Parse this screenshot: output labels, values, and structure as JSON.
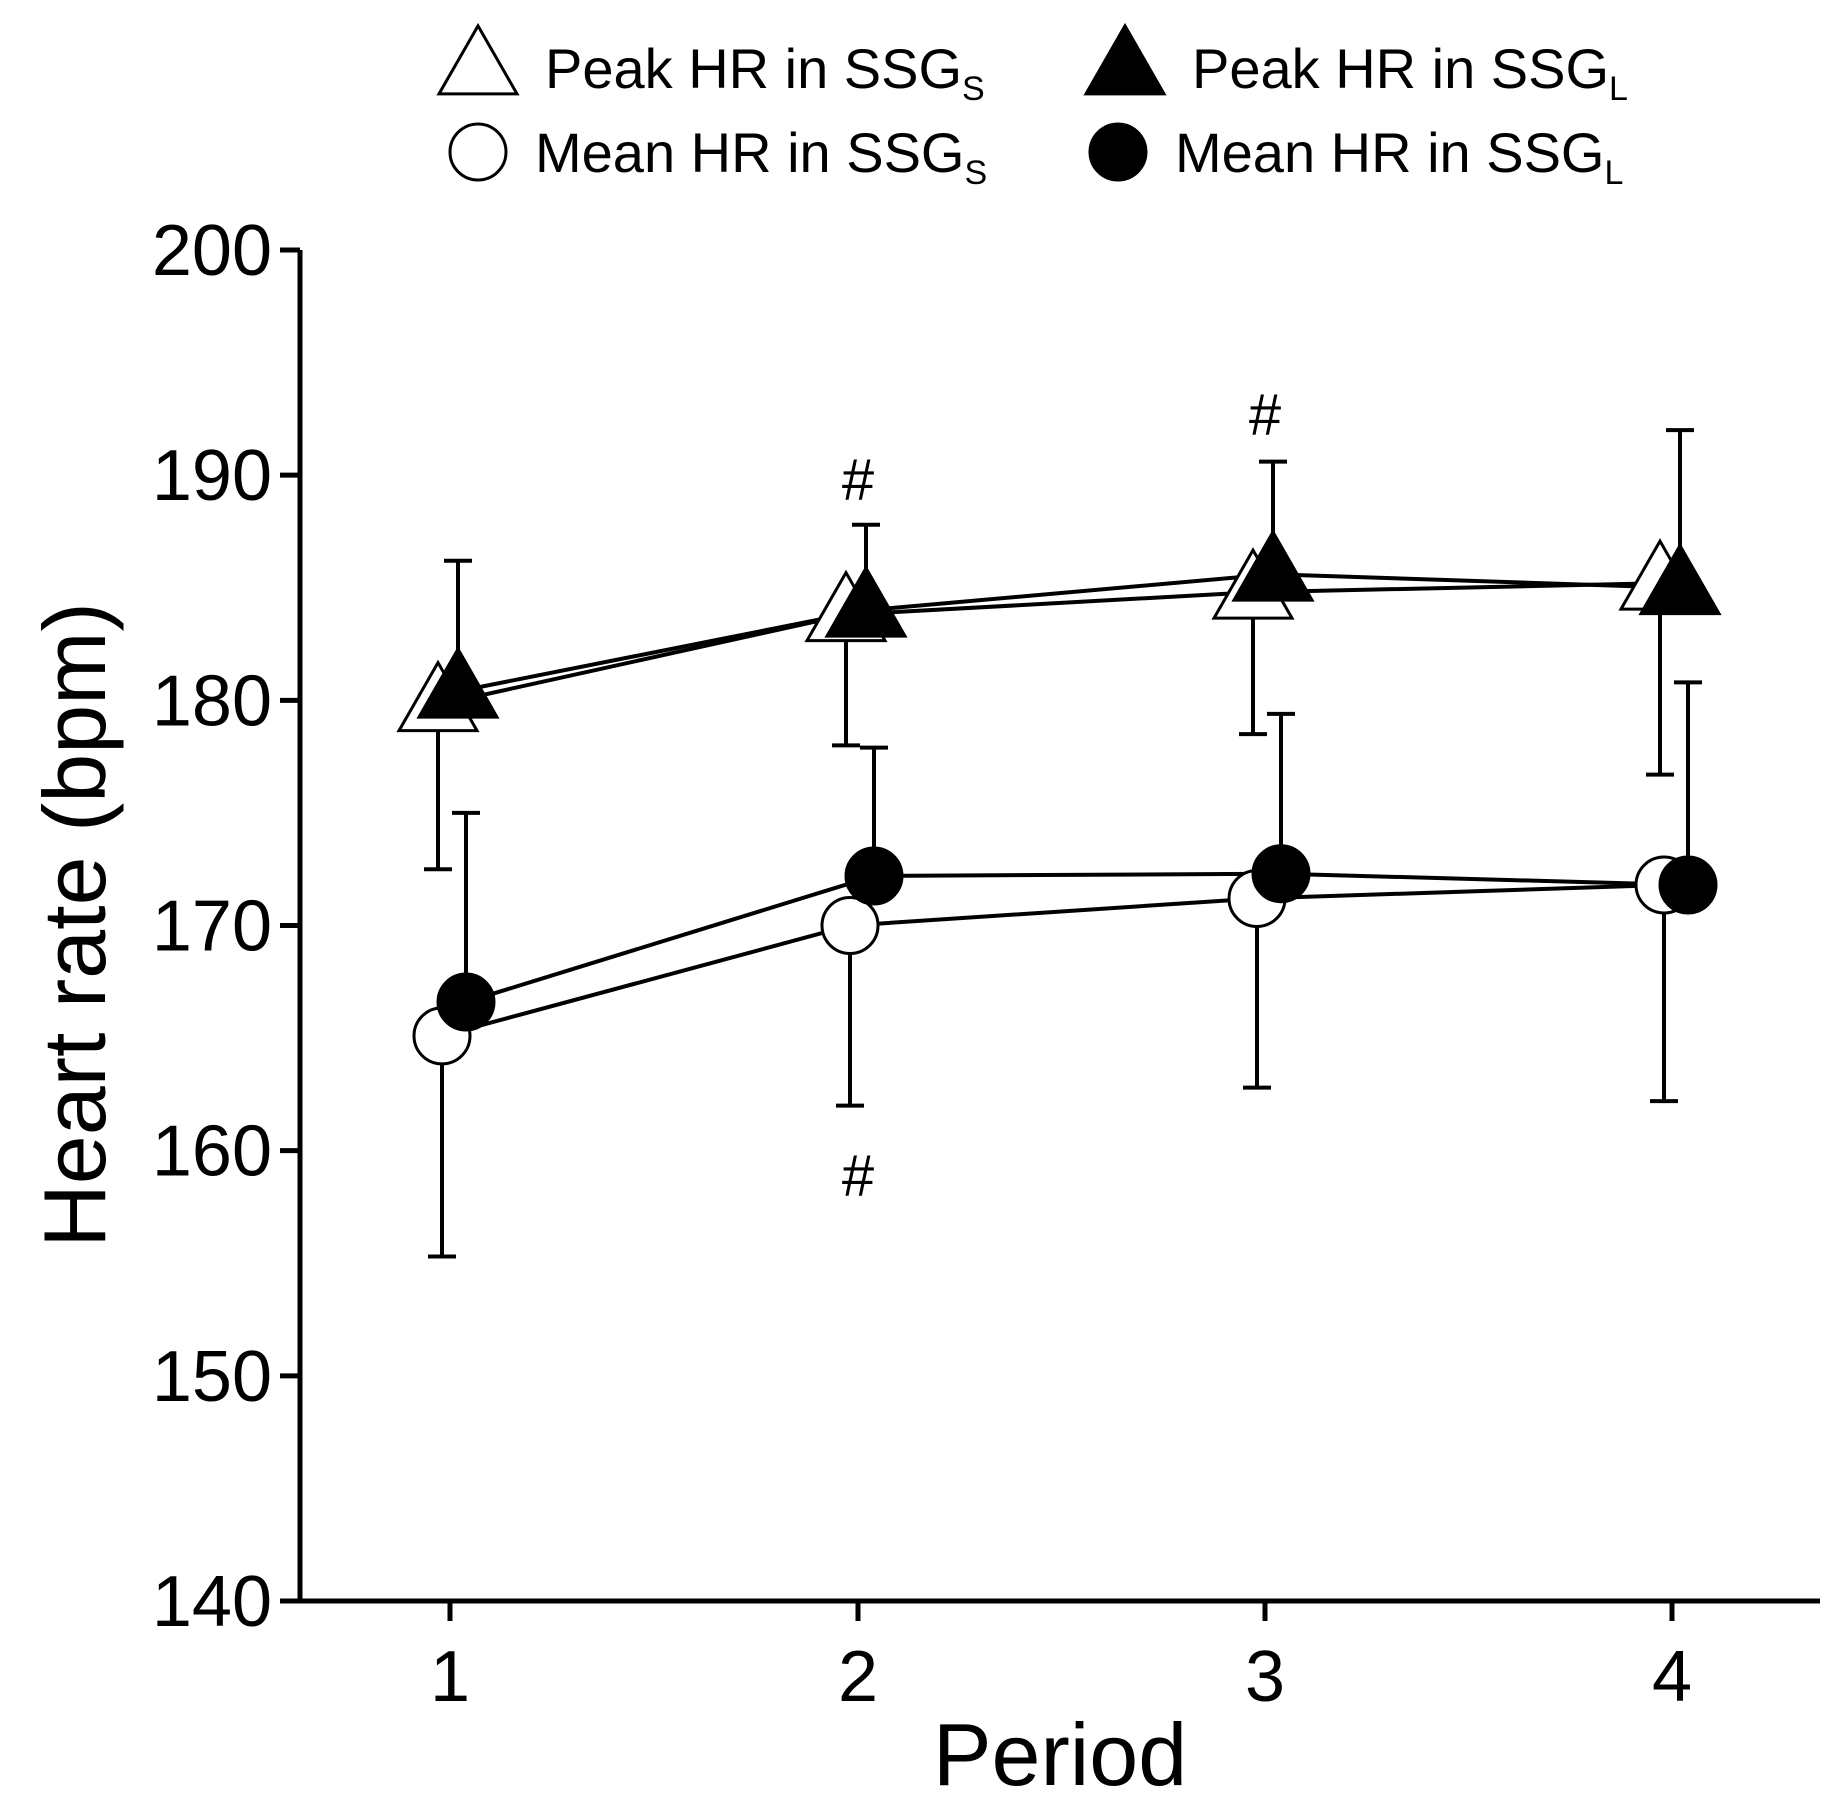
{
  "chart_data": {
    "type": "line",
    "title": "",
    "xlabel": "Period",
    "ylabel": "Heart rate (bpm)",
    "categories": [
      "1",
      "2",
      "3",
      "4"
    ],
    "ylim": [
      140,
      200
    ],
    "yticks": [
      "140",
      "150",
      "160",
      "170",
      "180",
      "190",
      "200"
    ],
    "grid": false,
    "legend_position": "top",
    "series": [
      {
        "name": "Peak HR in SSGS",
        "label": "Peak HR in SSG",
        "subscript": "S",
        "marker": "triangle-open",
        "values": [
          179.8,
          183.8,
          184.8,
          185.2
        ],
        "error": [
          7.3,
          5.8,
          6.3,
          8.5
        ],
        "error_dir": "down"
      },
      {
        "name": "Peak HR in SSGL",
        "label": "Peak HR in SSG",
        "subscript": "L",
        "marker": "triangle-filled",
        "values": [
          180.4,
          184.0,
          185.6,
          185.0
        ],
        "error": [
          5.8,
          3.8,
          5.0,
          7.0
        ],
        "error_dir": "up"
      },
      {
        "name": "Mean HR in SSGS",
        "label": "Mean HR in SSG",
        "subscript": "S",
        "marker": "circle-open",
        "values": [
          165.1,
          170.0,
          171.2,
          171.8
        ],
        "error": [
          9.8,
          8.0,
          8.4,
          9.6
        ],
        "error_dir": "down"
      },
      {
        "name": "Mean HR in SSGL",
        "label": "Mean HR in SSG",
        "subscript": "L",
        "marker": "circle-filled",
        "values": [
          166.6,
          172.2,
          172.3,
          171.8
        ],
        "error": [
          8.4,
          5.7,
          7.1,
          9.0
        ],
        "error_dir": "up"
      }
    ],
    "annotations": [
      {
        "text": "#",
        "period": "2",
        "value": 189.8
      },
      {
        "text": "#",
        "period": "3",
        "value": 192.7
      },
      {
        "text": "#",
        "period": "2",
        "value": 158.9
      }
    ]
  }
}
